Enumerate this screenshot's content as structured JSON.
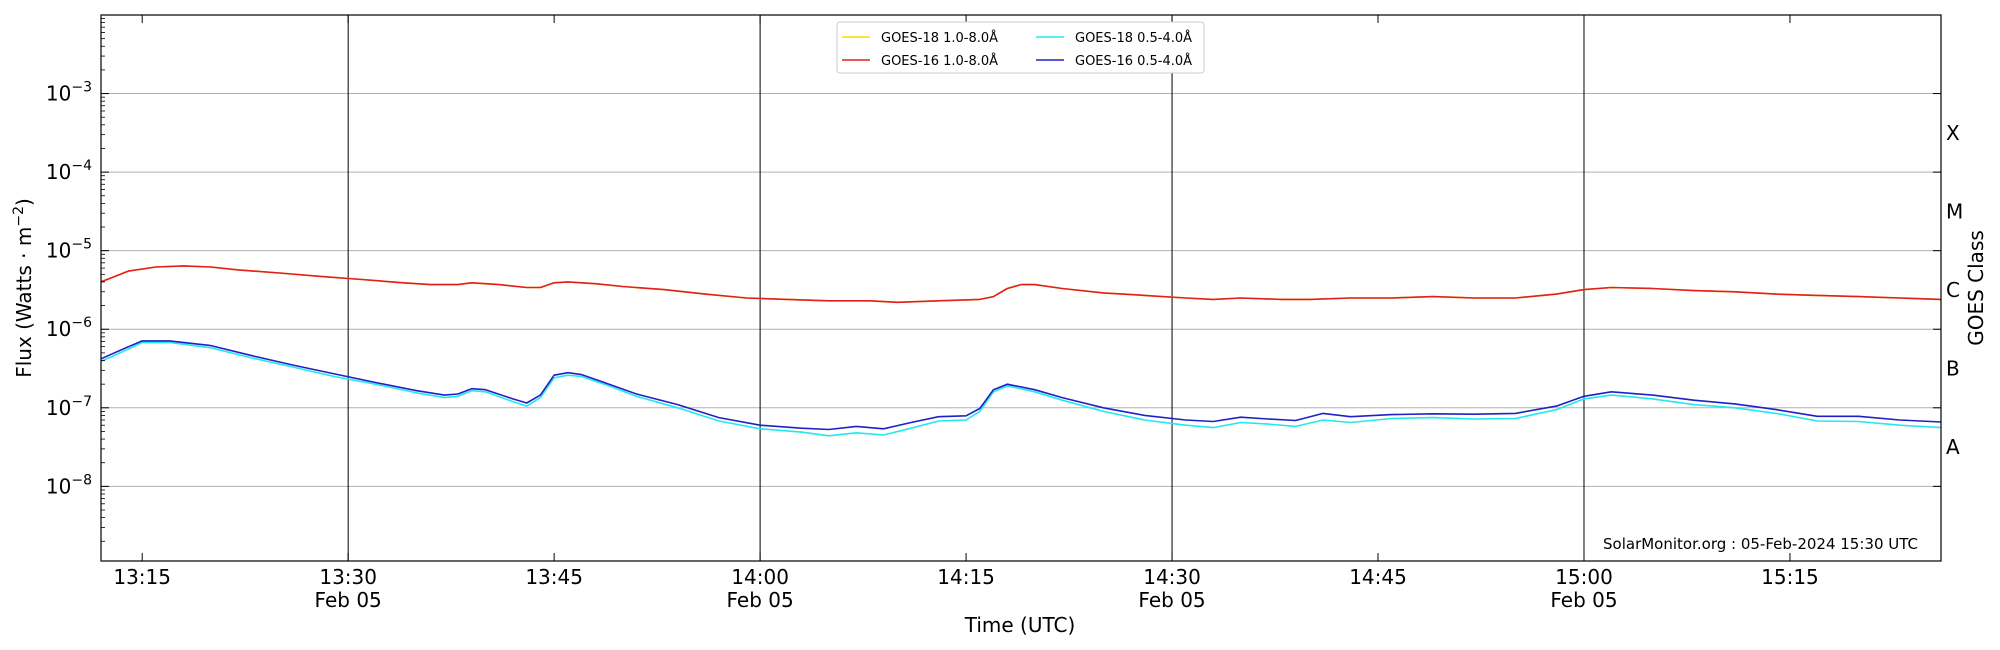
{
  "chart_data": {
    "type": "line",
    "xlabel": "Time (UTC)",
    "ylabel_base": "Flux (Watts · m",
    "ylabel_sup": "−2",
    "ylabel_close": ")",
    "right_label": "GOES Class",
    "credit": "SolarMonitor.org : 05-Feb-2024 15:30 UTC",
    "xlim": [
      "13:12",
      "15:26"
    ],
    "ylim_log10": [
      -8.95,
      -2.0
    ],
    "y_scale": "log",
    "grid": "horizontal at y ticks; vertical lines every 30 minutes",
    "x_ticks": [
      {
        "time": "13:15",
        "label": "13:15",
        "date": ""
      },
      {
        "time": "13:30",
        "label": "13:30",
        "date": "Feb 05"
      },
      {
        "time": "13:45",
        "label": "13:45",
        "date": ""
      },
      {
        "time": "14:00",
        "label": "14:00",
        "date": "Feb 05"
      },
      {
        "time": "14:15",
        "label": "14:15",
        "date": ""
      },
      {
        "time": "14:30",
        "label": "14:30",
        "date": "Feb 05"
      },
      {
        "time": "14:45",
        "label": "14:45",
        "date": ""
      },
      {
        "time": "15:00",
        "label": "15:00",
        "date": "Feb 05"
      },
      {
        "time": "15:15",
        "label": "15:15",
        "date": ""
      }
    ],
    "vertical_lines": [
      "13:30",
      "14:00",
      "14:30",
      "15:00"
    ],
    "y_ticks": [
      {
        "exp": -8,
        "base": "10",
        "sup": "−8"
      },
      {
        "exp": -7,
        "base": "10",
        "sup": "−7"
      },
      {
        "exp": -6,
        "base": "10",
        "sup": "−6"
      },
      {
        "exp": -5,
        "base": "10",
        "sup": "−5"
      },
      {
        "exp": -4,
        "base": "10",
        "sup": "−4"
      },
      {
        "exp": -3,
        "base": "10",
        "sup": "−3"
      }
    ],
    "goes_classes": [
      {
        "label": "A",
        "exp": -7.5
      },
      {
        "label": "B",
        "exp": -6.5
      },
      {
        "label": "C",
        "exp": -5.5
      },
      {
        "label": "M",
        "exp": -4.5
      },
      {
        "label": "X",
        "exp": -3.5
      }
    ],
    "legend_placement": "top-center",
    "series": [
      {
        "name": "GOES-18 1.0-8.0Å",
        "color": "#ffd700",
        "x": [
          "13:12",
          "13:14",
          "13:16",
          "13:18",
          "13:20",
          "13:22",
          "13:25",
          "13:28",
          "13:31",
          "13:34",
          "13:36",
          "13:38",
          "13:39",
          "13:41",
          "13:43",
          "13:44",
          "13:45",
          "13:46",
          "13:48",
          "13:50",
          "13:53",
          "13:56",
          "13:59",
          "14:02",
          "14:05",
          "14:08",
          "14:10",
          "14:13",
          "14:16",
          "14:17",
          "14:18",
          "14:19",
          "14:20",
          "14:22",
          "14:25",
          "14:28",
          "14:31",
          "14:33",
          "14:35",
          "14:38",
          "14:40",
          "14:43",
          "14:46",
          "14:49",
          "14:52",
          "14:55",
          "14:58",
          "15:00",
          "15:02",
          "15:05",
          "15:08",
          "15:11",
          "15:14",
          "15:17",
          "15:20",
          "15:23",
          "15:26"
        ],
        "values": [
          4e-06,
          5.5e-06,
          6.2e-06,
          6.4e-06,
          6.2e-06,
          5.7e-06,
          5.2e-06,
          4.7e-06,
          4.3e-06,
          3.9e-06,
          3.7e-06,
          3.7e-06,
          3.9e-06,
          3.7e-06,
          3.4e-06,
          3.4e-06,
          3.9e-06,
          4e-06,
          3.8e-06,
          3.5e-06,
          3.2e-06,
          2.8e-06,
          2.5e-06,
          2.4e-06,
          2.3e-06,
          2.3e-06,
          2.2e-06,
          2.3e-06,
          2.4e-06,
          2.6e-06,
          3.3e-06,
          3.7e-06,
          3.7e-06,
          3.3e-06,
          2.9e-06,
          2.7e-06,
          2.5e-06,
          2.4e-06,
          2.5e-06,
          2.4e-06,
          2.4e-06,
          2.5e-06,
          2.5e-06,
          2.6e-06,
          2.5e-06,
          2.5e-06,
          2.8e-06,
          3.2e-06,
          3.4e-06,
          3.3e-06,
          3.1e-06,
          3e-06,
          2.8e-06,
          2.7e-06,
          2.6e-06,
          2.5e-06,
          2.4e-06
        ]
      },
      {
        "name": "GOES-16 1.0-8.0Å",
        "color": "#e02020",
        "x": [
          "13:12",
          "13:14",
          "13:16",
          "13:18",
          "13:20",
          "13:22",
          "13:25",
          "13:28",
          "13:31",
          "13:34",
          "13:36",
          "13:38",
          "13:39",
          "13:41",
          "13:43",
          "13:44",
          "13:45",
          "13:46",
          "13:48",
          "13:50",
          "13:53",
          "13:56",
          "13:59",
          "14:02",
          "14:05",
          "14:08",
          "14:10",
          "14:13",
          "14:16",
          "14:17",
          "14:18",
          "14:19",
          "14:20",
          "14:22",
          "14:25",
          "14:28",
          "14:31",
          "14:33",
          "14:35",
          "14:38",
          "14:40",
          "14:43",
          "14:46",
          "14:49",
          "14:52",
          "14:55",
          "14:58",
          "15:00",
          "15:02",
          "15:05",
          "15:08",
          "15:11",
          "15:14",
          "15:17",
          "15:20",
          "15:23",
          "15:26"
        ],
        "values": [
          4e-06,
          5.5e-06,
          6.2e-06,
          6.4e-06,
          6.2e-06,
          5.7e-06,
          5.2e-06,
          4.7e-06,
          4.3e-06,
          3.9e-06,
          3.7e-06,
          3.7e-06,
          3.9e-06,
          3.7e-06,
          3.4e-06,
          3.4e-06,
          3.9e-06,
          4e-06,
          3.8e-06,
          3.5e-06,
          3.2e-06,
          2.8e-06,
          2.5e-06,
          2.4e-06,
          2.3e-06,
          2.3e-06,
          2.2e-06,
          2.3e-06,
          2.4e-06,
          2.6e-06,
          3.3e-06,
          3.7e-06,
          3.7e-06,
          3.3e-06,
          2.9e-06,
          2.7e-06,
          2.5e-06,
          2.4e-06,
          2.5e-06,
          2.4e-06,
          2.4e-06,
          2.5e-06,
          2.5e-06,
          2.6e-06,
          2.5e-06,
          2.5e-06,
          2.8e-06,
          3.2e-06,
          3.4e-06,
          3.3e-06,
          3.1e-06,
          3e-06,
          2.8e-06,
          2.7e-06,
          2.6e-06,
          2.5e-06,
          2.4e-06
        ]
      },
      {
        "name": "GOES-18 0.5-4.0Å",
        "color": "#22e8f0",
        "x": [
          "13:12",
          "13:14",
          "13:15",
          "13:17",
          "13:20",
          "13:23",
          "13:26",
          "13:29",
          "13:32",
          "13:35",
          "13:37",
          "13:38",
          "13:39",
          "13:40",
          "13:42",
          "13:43",
          "13:44",
          "13:45",
          "13:46",
          "13:47",
          "13:49",
          "13:51",
          "13:54",
          "13:57",
          "14:00",
          "14:03",
          "14:05",
          "14:07",
          "14:09",
          "14:11",
          "14:13",
          "14:15",
          "14:16",
          "14:17",
          "14:18",
          "14:20",
          "14:22",
          "14:25",
          "14:28",
          "14:31",
          "14:33",
          "14:35",
          "14:37",
          "14:39",
          "14:41",
          "14:43",
          "14:46",
          "14:49",
          "14:52",
          "14:55",
          "14:58",
          "15:00",
          "15:02",
          "15:05",
          "15:08",
          "15:11",
          "15:14",
          "15:17",
          "15:20",
          "15:23",
          "15:26"
        ],
        "values": [
          3.9e-07,
          5.6e-07,
          6.8e-07,
          6.8e-07,
          5.8e-07,
          4.3e-07,
          3.3e-07,
          2.5e-07,
          2e-07,
          1.55e-07,
          1.35e-07,
          1.4e-07,
          1.65e-07,
          1.6e-07,
          1.2e-07,
          1.05e-07,
          1.35e-07,
          2.4e-07,
          2.6e-07,
          2.5e-07,
          1.9e-07,
          1.4e-07,
          1e-07,
          6.8e-08,
          5.4e-08,
          4.9e-08,
          4.4e-08,
          4.8e-08,
          4.5e-08,
          5.5e-08,
          6.8e-08,
          7e-08,
          9e-08,
          1.6e-07,
          1.9e-07,
          1.6e-07,
          1.25e-07,
          9e-08,
          7e-08,
          6e-08,
          5.6e-08,
          6.5e-08,
          6.2e-08,
          5.8e-08,
          7e-08,
          6.5e-08,
          7.3e-08,
          7.5e-08,
          7.2e-08,
          7.3e-08,
          9.5e-08,
          1.3e-07,
          1.45e-07,
          1.3e-07,
          1.1e-07,
          1e-07,
          8.5e-08,
          6.8e-08,
          6.7e-08,
          6e-08,
          5.6e-08
        ]
      },
      {
        "name": "GOES-16 0.5-4.0Å",
        "color": "#2020c8",
        "x": [
          "13:12",
          "13:14",
          "13:15",
          "13:17",
          "13:20",
          "13:23",
          "13:26",
          "13:29",
          "13:32",
          "13:35",
          "13:37",
          "13:38",
          "13:39",
          "13:40",
          "13:42",
          "13:43",
          "13:44",
          "13:45",
          "13:46",
          "13:47",
          "13:49",
          "13:51",
          "13:54",
          "13:57",
          "14:00",
          "14:03",
          "14:05",
          "14:07",
          "14:09",
          "14:11",
          "14:13",
          "14:15",
          "14:16",
          "14:17",
          "14:18",
          "14:20",
          "14:22",
          "14:25",
          "14:28",
          "14:31",
          "14:33",
          "14:35",
          "14:37",
          "14:39",
          "14:41",
          "14:43",
          "14:46",
          "14:49",
          "14:52",
          "14:55",
          "14:58",
          "15:00",
          "15:02",
          "15:05",
          "15:08",
          "15:11",
          "15:14",
          "15:17",
          "15:20",
          "15:23",
          "15:26"
        ],
        "values": [
          4.2e-07,
          6e-07,
          7.1e-07,
          7.1e-07,
          6.2e-07,
          4.6e-07,
          3.5e-07,
          2.7e-07,
          2.1e-07,
          1.65e-07,
          1.45e-07,
          1.5e-07,
          1.75e-07,
          1.7e-07,
          1.3e-07,
          1.15e-07,
          1.45e-07,
          2.6e-07,
          2.8e-07,
          2.65e-07,
          2e-07,
          1.5e-07,
          1.1e-07,
          7.5e-08,
          6e-08,
          5.5e-08,
          5.3e-08,
          5.8e-08,
          5.4e-08,
          6.5e-08,
          7.7e-08,
          7.9e-08,
          9.8e-08,
          1.7e-07,
          2e-07,
          1.7e-07,
          1.35e-07,
          1e-07,
          8e-08,
          7e-08,
          6.7e-08,
          7.6e-08,
          7.2e-08,
          6.9e-08,
          8.5e-08,
          7.7e-08,
          8.2e-08,
          8.4e-08,
          8.3e-08,
          8.5e-08,
          1.05e-07,
          1.4e-07,
          1.6e-07,
          1.45e-07,
          1.25e-07,
          1.12e-07,
          9.5e-08,
          7.8e-08,
          7.8e-08,
          7e-08,
          6.6e-08
        ]
      }
    ]
  }
}
